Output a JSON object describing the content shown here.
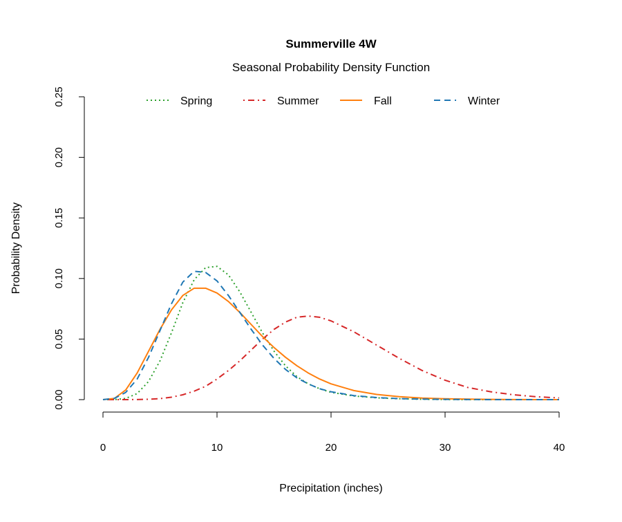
{
  "chart_data": {
    "type": "line",
    "title": "Summerville 4W",
    "subtitle": "Seasonal Probability Density Function",
    "xlabel": "Precipitation (inches)",
    "ylabel": "Probability Density",
    "xlim": [
      0,
      40
    ],
    "ylim": [
      0,
      0.25
    ],
    "xticks": [
      "0",
      "10",
      "20",
      "30",
      "40"
    ],
    "yticks": [
      "0.00",
      "0.05",
      "0.10",
      "0.15",
      "0.20",
      "0.25"
    ],
    "grid": false,
    "legend_position": "top",
    "x": [
      0,
      1,
      2,
      3,
      4,
      5,
      6,
      7,
      8,
      9,
      10,
      11,
      12,
      13,
      14,
      15,
      16,
      17,
      18,
      19,
      20,
      22,
      24,
      26,
      28,
      30,
      32,
      34,
      36,
      38,
      40
    ],
    "series": [
      {
        "name": "Spring",
        "color": "#2ca02c",
        "style": "dotted",
        "values": [
          0,
          0,
          0.001,
          0.005,
          0.015,
          0.032,
          0.055,
          0.08,
          0.099,
          0.109,
          0.11,
          0.103,
          0.089,
          0.072,
          0.055,
          0.04,
          0.028,
          0.019,
          0.013,
          0.009,
          0.006,
          0.003,
          0.0015,
          0.0007,
          0.0003,
          0.0001,
          0,
          0,
          0,
          0,
          0
        ]
      },
      {
        "name": "Summer",
        "color": "#d62728",
        "style": "dotdash",
        "values": [
          0,
          0,
          0,
          0.0001,
          0.0003,
          0.0008,
          0.002,
          0.004,
          0.007,
          0.011,
          0.017,
          0.024,
          0.032,
          0.041,
          0.05,
          0.058,
          0.064,
          0.068,
          0.069,
          0.068,
          0.065,
          0.056,
          0.045,
          0.034,
          0.024,
          0.016,
          0.01,
          0.0065,
          0.004,
          0.0024,
          0.0014
        ]
      },
      {
        "name": "Fall",
        "color": "#ff7f0e",
        "style": "solid",
        "values": [
          0,
          0.001,
          0.008,
          0.022,
          0.04,
          0.058,
          0.074,
          0.086,
          0.092,
          0.092,
          0.088,
          0.081,
          0.072,
          0.062,
          0.052,
          0.043,
          0.035,
          0.028,
          0.022,
          0.017,
          0.013,
          0.0075,
          0.0043,
          0.0024,
          0.0013,
          0.0007,
          0.0004,
          0.0002,
          0.0001,
          0,
          0
        ]
      },
      {
        "name": "Winter",
        "color": "#1f77b4",
        "style": "dashed",
        "values": [
          0,
          0.001,
          0.006,
          0.017,
          0.035,
          0.057,
          0.079,
          0.097,
          0.106,
          0.105,
          0.098,
          0.086,
          0.072,
          0.058,
          0.045,
          0.034,
          0.025,
          0.018,
          0.013,
          0.009,
          0.0065,
          0.0033,
          0.0017,
          0.0008,
          0.0004,
          0.0002,
          0.0001,
          0,
          0,
          0,
          0
        ]
      }
    ]
  }
}
